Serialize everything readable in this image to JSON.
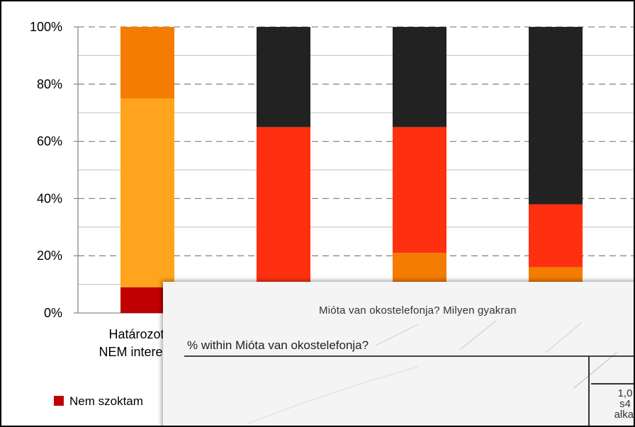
{
  "chart_data": {
    "type": "bar",
    "stacked": true,
    "normalized": true,
    "categories": [
      "Határozottan NEM interesszál",
      "",
      "",
      ""
    ],
    "category_lines": [
      [
        "Határozottan",
        "NEM interesszál"
      ],
      [],
      [],
      []
    ],
    "series": [
      {
        "name": "Nem szoktam",
        "color": "#c00000",
        "values": [
          9,
          0,
          0,
          0
        ]
      },
      {
        "name": "",
        "color": "#ffa41c",
        "values": [
          66,
          0,
          0,
          0
        ]
      },
      {
        "name": "",
        "color": "#f47c00",
        "values": [
          25,
          0,
          21,
          16
        ]
      },
      {
        "name": "",
        "color": "#ff3010",
        "values": [
          0,
          65,
          44,
          22
        ]
      },
      {
        "name": "",
        "color": "#222222",
        "values": [
          0,
          35,
          35,
          62
        ]
      }
    ],
    "yticks": [
      "0%",
      "20%",
      "40%",
      "60%",
      "80%",
      "100%"
    ],
    "ylim": [
      0,
      100
    ],
    "grid": true,
    "legend": "bottom-left"
  },
  "overlay": {
    "heading": "Mióta van okostelefonja?  Milyen gyakran",
    "subtitle": "% within Mióta van okostelefonja?",
    "cell_lines": [
      "1,0",
      "s4",
      "alkal"
    ]
  }
}
